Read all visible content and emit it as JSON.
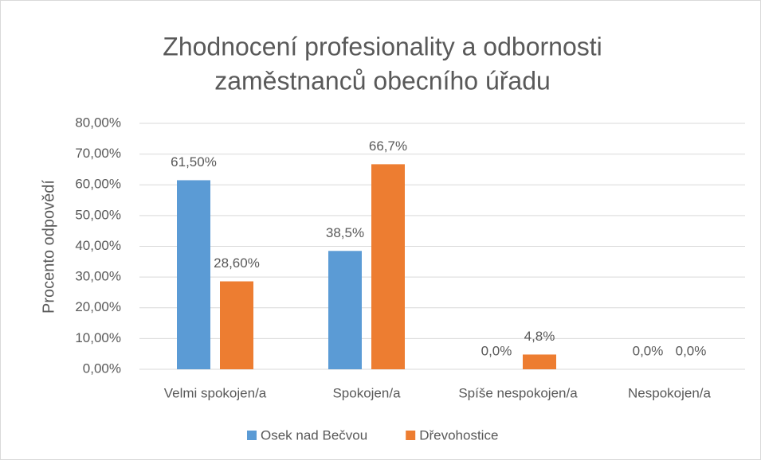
{
  "chart_data": {
    "type": "bar",
    "title": [
      "Zhodnocení profesionality a odbornosti",
      "zaměstnanců obecního úřadu"
    ],
    "y_label": "Procento odpovědí",
    "categories": [
      "Velmi spokojen/a",
      "Spokojen/a",
      "Spíše nespokojen/a",
      "Nespokojen/a"
    ],
    "series": [
      {
        "name": "Osek nad Bečvou",
        "color": "#5b9bd5",
        "values": [
          61.5,
          38.5,
          0,
          0
        ],
        "value_labels": [
          "61,50%",
          "38,5%",
          "0,0%",
          "0,0%"
        ]
      },
      {
        "name": "Dřevohostice",
        "color": "#ed7d31",
        "values": [
          28.6,
          66.7,
          4.8,
          0
        ],
        "value_labels": [
          "28,60%",
          "66,7%",
          "4,8%",
          "0,0%"
        ]
      }
    ],
    "ylim": [
      0,
      80
    ],
    "yticks": [
      {
        "value": 0,
        "label": "0,00%"
      },
      {
        "value": 10,
        "label": "10,00%"
      },
      {
        "value": 20,
        "label": "20,00%"
      },
      {
        "value": 30,
        "label": "30,00%"
      },
      {
        "value": 40,
        "label": "40,00%"
      },
      {
        "value": 50,
        "label": "50,00%"
      },
      {
        "value": 60,
        "label": "60,00%"
      },
      {
        "value": 70,
        "label": "70,00%"
      },
      {
        "value": 80,
        "label": "80,00%"
      }
    ],
    "grid": true,
    "legend": "bottom"
  }
}
